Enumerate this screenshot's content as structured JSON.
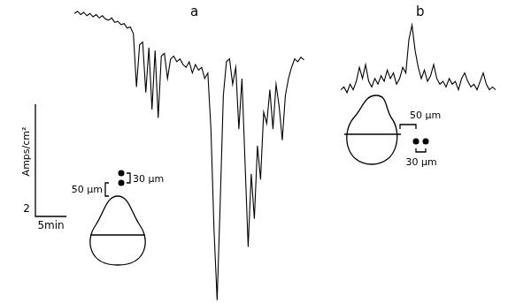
{
  "chart_data": [
    {
      "type": "line",
      "title": "a",
      "color": "#000000",
      "tick_labels": false,
      "xlim": [
        -12,
        38.5
      ],
      "ylim": [
        -4.3,
        1.1
      ],
      "x": [
        0,
        0.5,
        1,
        1.5,
        2,
        2.5,
        3,
        3.5,
        4,
        4.5,
        5,
        5.5,
        6,
        6.5,
        7,
        7.5,
        8,
        8.5,
        9,
        9.5,
        10,
        10.5,
        11,
        11.5,
        12,
        12.5,
        13,
        13.5,
        14,
        14.5,
        15,
        15.5,
        16,
        16.5,
        17,
        17.5,
        18,
        18.5,
        19,
        19.5,
        20,
        20.5,
        21,
        21.5,
        22,
        22.5,
        23,
        23.5,
        24,
        24.5,
        25,
        25.5,
        26,
        26.5,
        27,
        27.5,
        28,
        28.5,
        29,
        29.5,
        30,
        30.5,
        31,
        31.5,
        32,
        32.5,
        33,
        33.5,
        34,
        34.5,
        35,
        35.5,
        36,
        36.5,
        37
      ],
      "values": [
        0.86,
        0.9,
        0.84,
        0.88,
        0.82,
        0.86,
        0.8,
        0.84,
        0.78,
        0.82,
        0.76,
        0.74,
        0.78,
        0.7,
        0.72,
        0.66,
        0.68,
        0.6,
        0.62,
        0.5,
        -0.45,
        0.3,
        0.35,
        -0.55,
        0.25,
        -0.85,
        0.2,
        -1.0,
        0.1,
        0.15,
        -0.3,
        0.05,
        0.1,
        0.0,
        0.05,
        -0.05,
        -0.1,
        0.0,
        -0.2,
        -0.05,
        -0.15,
        -0.1,
        -0.3,
        -0.2,
        -1.2,
        -3.0,
        -4.25,
        -2.5,
        -0.6,
        0.0,
        0.05,
        -0.4,
        -0.1,
        -1.2,
        -0.3,
        -1.8,
        -3.3,
        -2.0,
        -2.8,
        -1.5,
        -2.1,
        -0.9,
        -1.1,
        -0.5,
        -1.2,
        -0.4,
        -0.8,
        -1.4,
        -0.6,
        -0.3,
        -0.1,
        0.05,
        0.0,
        0.08,
        0.03
      ],
      "scale_bar": {
        "x": 5,
        "x_label": "5min",
        "y": 2,
        "y_label": "2",
        "y_unit": "Amps/cm²"
      },
      "inset_labels": [
        "50 μm",
        "30 μm"
      ]
    },
    {
      "type": "line",
      "title": "b",
      "color": "#000000",
      "tick_labels": false,
      "xlim": [
        -4.3,
        27
      ],
      "ylim": [
        -4.3,
        1.1
      ],
      "x": [
        0,
        0.5,
        1,
        1.5,
        2,
        2.5,
        3,
        3.5,
        4,
        4.5,
        5,
        5.5,
        6,
        6.5,
        7,
        7.5,
        8,
        8.5,
        9,
        9.5,
        10,
        10.5,
        11,
        11.5,
        12,
        12.5,
        13,
        13.5,
        14,
        14.5,
        15,
        15.5,
        16,
        16.5,
        17,
        17.5,
        18,
        18.5,
        19,
        19.5,
        20,
        20.5,
        21,
        21.5,
        22,
        22.5,
        23,
        23.5,
        24,
        24.5,
        25
      ],
      "values": [
        -0.5,
        -0.45,
        -0.55,
        -0.4,
        -0.5,
        -0.35,
        -0.1,
        -0.3,
        -0.05,
        -0.35,
        -0.45,
        -0.3,
        -0.4,
        -0.25,
        -0.35,
        -0.15,
        -0.3,
        -0.2,
        -0.4,
        -0.3,
        -0.1,
        -0.2,
        0.4,
        0.65,
        0.2,
        -0.1,
        -0.3,
        -0.15,
        -0.35,
        -0.25,
        -0.05,
        -0.3,
        -0.4,
        -0.35,
        -0.45,
        -0.3,
        -0.4,
        -0.35,
        -0.5,
        -0.3,
        -0.2,
        -0.35,
        -0.45,
        -0.4,
        -0.5,
        -0.35,
        -0.2,
        -0.4,
        -0.5,
        -0.45,
        -0.5
      ],
      "inset_labels": [
        "50 μm",
        "30 μm"
      ]
    }
  ]
}
